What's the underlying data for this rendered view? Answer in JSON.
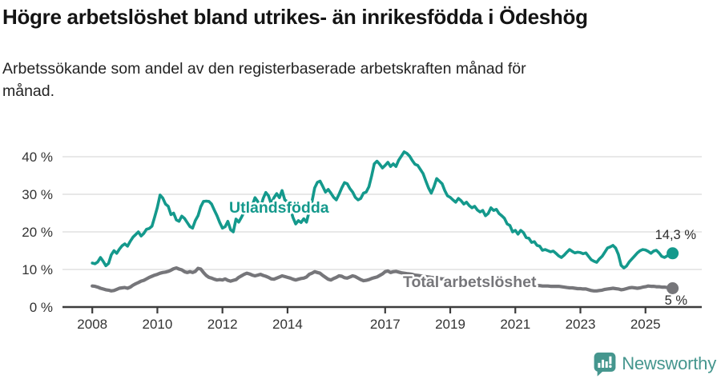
{
  "header": {
    "title": "Högre arbetslöshet bland utrikes- än inrikesfödda i Ödeshög",
    "subtitle_line1": "Arbetssökande som andel av den registerbaserade arbetskraften månad för",
    "subtitle_line2": "månad."
  },
  "colors": {
    "series_utlandsfodda": "#14998c",
    "series_total": "#76767a",
    "gridline": "#d9d9d9",
    "axis": "#3c3c3c",
    "tick_text": "#333333",
    "brand_teal": "#45968e"
  },
  "chart_data": {
    "type": "line",
    "title": "Högre arbetslöshet bland utrikes- än inrikesfödda i Ödeshög",
    "subtitle": "Arbetssökande som andel av den registerbaserade arbetskraften månad för månad.",
    "xlabel": "",
    "ylabel": "",
    "grid": true,
    "ylim": [
      0,
      43
    ],
    "xlim": [
      2007.1,
      2026.75
    ],
    "x_start_year": 2008.0,
    "x_step_years": 0.0833333,
    "y_ticks": [
      {
        "v": 0,
        "label": "0 %"
      },
      {
        "v": 10,
        "label": "10 %"
      },
      {
        "v": 20,
        "label": "20 %"
      },
      {
        "v": 30,
        "label": "30 %"
      },
      {
        "v": 40,
        "label": "40 %"
      }
    ],
    "x_ticks": [
      {
        "v": 2008,
        "label": "2008"
      },
      {
        "v": 2010,
        "label": "2010"
      },
      {
        "v": 2012,
        "label": "2012"
      },
      {
        "v": 2014,
        "label": "2014"
      },
      {
        "v": 2017,
        "label": "2017"
      },
      {
        "v": 2019,
        "label": "2019"
      },
      {
        "v": 2021,
        "label": "2021"
      },
      {
        "v": 2023,
        "label": "2023"
      },
      {
        "v": 2025,
        "label": "2025"
      }
    ],
    "series": [
      {
        "name": "Utlandsfödda",
        "color": "#14998c",
        "line_width": 3.6,
        "end_label": "14,3 %",
        "end_value": 14.3,
        "values": [
          11.7,
          11.5,
          12.0,
          13.2,
          12.2,
          11.0,
          11.6,
          13.9,
          15.0,
          14.3,
          15.4,
          16.3,
          16.8,
          16.2,
          17.5,
          18.6,
          19.3,
          20.0,
          18.9,
          19.6,
          20.7,
          20.9,
          21.5,
          24.0,
          26.5,
          29.8,
          29.0,
          27.4,
          26.8,
          24.6,
          25.0,
          23.2,
          22.8,
          24.2,
          23.6,
          22.5,
          21.4,
          21.0,
          23.0,
          24.3,
          26.7,
          28.1,
          28.2,
          28.1,
          27.4,
          25.8,
          24.3,
          22.5,
          21.0,
          21.4,
          22.8,
          20.6,
          20.0,
          23.4,
          22.6,
          23.9,
          25.3,
          26.0,
          26.4,
          27.0,
          29.1,
          28.1,
          26.4,
          28.9,
          30.5,
          29.6,
          27.4,
          29.1,
          30.2,
          29.1,
          31.0,
          28.5,
          28.0,
          26.4,
          23.8,
          22.1,
          23.0,
          22.5,
          23.5,
          22.6,
          25.5,
          28.0,
          31.7,
          33.2,
          33.5,
          32.1,
          30.6,
          31.3,
          30.3,
          29.2,
          28.5,
          30.0,
          31.7,
          33.1,
          32.8,
          31.5,
          30.6,
          29.2,
          28.5,
          28.9,
          30.3,
          30.6,
          32.0,
          34.9,
          38.1,
          38.8,
          38.0,
          37.0,
          37.7,
          38.5,
          37.4,
          38.1,
          37.4,
          39.1,
          40.2,
          41.3,
          40.9,
          40.2,
          39.0,
          38.0,
          37.7,
          36.6,
          35.5,
          33.5,
          31.7,
          30.3,
          32.0,
          34.2,
          33.5,
          32.8,
          31.0,
          29.6,
          29.2,
          28.5,
          27.9,
          28.9,
          28.3,
          27.4,
          27.9,
          27.0,
          26.4,
          26.8,
          25.8,
          25.3,
          25.7,
          24.3,
          24.9,
          26.4,
          25.7,
          26.0,
          24.9,
          24.3,
          23.6,
          22.1,
          21.7,
          20.0,
          20.4,
          19.4,
          20.4,
          19.8,
          18.5,
          18.3,
          17.2,
          17.4,
          16.4,
          16.2,
          15.1,
          15.3,
          15.0,
          14.7,
          14.9,
          14.3,
          13.6,
          13.2,
          13.8,
          14.6,
          15.3,
          14.8,
          14.4,
          14.6,
          14.5,
          14.2,
          14.4,
          13.5,
          12.6,
          12.2,
          11.9,
          12.8,
          13.5,
          14.6,
          15.7,
          16.0,
          16.4,
          15.7,
          14.0,
          11.1,
          10.4,
          10.9,
          12.0,
          12.8,
          13.6,
          14.4,
          15.0,
          15.3,
          15.2,
          14.8,
          14.3,
          14.9,
          15.1,
          14.4,
          13.5,
          13.2,
          13.6,
          14.5,
          14.3
        ]
      },
      {
        "name": "Total arbetslöshet",
        "color": "#76767a",
        "line_width": 4.2,
        "end_label": "5 %",
        "end_value": 5.0,
        "values": [
          5.6,
          5.5,
          5.3,
          5.0,
          4.8,
          4.6,
          4.5,
          4.3,
          4.4,
          4.7,
          5.0,
          5.1,
          5.2,
          5.0,
          5.3,
          5.8,
          6.2,
          6.5,
          6.9,
          7.1,
          7.5,
          7.9,
          8.2,
          8.5,
          8.7,
          9.0,
          9.2,
          9.3,
          9.5,
          9.8,
          10.2,
          10.4,
          10.1,
          9.9,
          9.4,
          9.2,
          9.4,
          9.2,
          9.5,
          10.3,
          10.1,
          9.2,
          8.4,
          7.9,
          7.7,
          7.4,
          7.2,
          7.3,
          7.2,
          7.5,
          7.1,
          6.9,
          7.1,
          7.3,
          7.9,
          8.3,
          8.7,
          9.0,
          8.8,
          8.5,
          8.3,
          8.5,
          8.7,
          8.4,
          8.2,
          7.9,
          7.5,
          7.4,
          7.7,
          8.0,
          8.3,
          8.1,
          7.9,
          7.7,
          7.4,
          7.2,
          7.4,
          7.6,
          7.7,
          8.0,
          8.7,
          9.0,
          9.4,
          9.2,
          9.0,
          8.4,
          7.9,
          7.4,
          7.2,
          7.6,
          7.9,
          8.3,
          8.2,
          7.8,
          7.7,
          8.0,
          8.3,
          8.1,
          7.7,
          7.3,
          7.0,
          7.1,
          7.3,
          7.6,
          7.8,
          8.0,
          8.4,
          8.8,
          9.4,
          9.6,
          9.2,
          9.4,
          9.5,
          9.3,
          9.1,
          9.0,
          8.9,
          8.8,
          8.7,
          8.5,
          8.4,
          8.3,
          8.2,
          8.1,
          8.0,
          7.9,
          7.8,
          7.7,
          7.6,
          7.5,
          7.5,
          7.4,
          7.3,
          7.2,
          7.1,
          7.0,
          6.9,
          6.9,
          6.8,
          6.8,
          6.7,
          6.7,
          6.6,
          6.6,
          6.6,
          6.5,
          6.5,
          6.5,
          6.4,
          6.4,
          6.3,
          6.3,
          6.2,
          6.1,
          6.1,
          6.0,
          6.0,
          6.0,
          5.9,
          5.9,
          5.9,
          5.8,
          5.8,
          5.8,
          5.7,
          5.7,
          5.6,
          5.6,
          5.6,
          5.5,
          5.5,
          5.5,
          5.5,
          5.4,
          5.3,
          5.2,
          5.1,
          5.1,
          5.0,
          4.9,
          4.9,
          4.8,
          4.8,
          4.6,
          4.4,
          4.3,
          4.3,
          4.4,
          4.5,
          4.7,
          4.8,
          4.9,
          5.0,
          4.9,
          4.8,
          4.6,
          4.7,
          4.9,
          5.1,
          5.2,
          5.1,
          5.0,
          5.1,
          5.3,
          5.4,
          5.6,
          5.5,
          5.5,
          5.4,
          5.4,
          5.3,
          5.3,
          5.2,
          5.2,
          5.0
        ]
      }
    ],
    "legend_position": "inline-labels"
  },
  "branding": {
    "logo_text": "Newsworthy"
  }
}
